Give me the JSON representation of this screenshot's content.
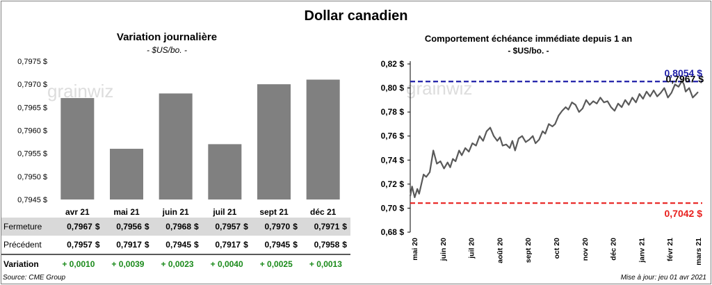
{
  "title": "Dollar canadien",
  "left": {
    "title": "Variation  journalière",
    "subtitle": "- $US/bo. -"
  },
  "right": {
    "title": "Comportement échéance immédiate depuis 1 an",
    "subtitle": "- $US/bo. -"
  },
  "watermark": "grainwiz",
  "chart_data": [
    {
      "type": "bar",
      "categories": [
        "avr 21",
        "mai 21",
        "juin 21",
        "juil 21",
        "sept 21",
        "déc 21"
      ],
      "values": [
        0.7967,
        0.7956,
        0.7968,
        0.7957,
        0.797,
        0.7971
      ],
      "ylim": [
        0.7945,
        0.7975
      ],
      "yticks": [
        "0,7945 $",
        "0,7950 $",
        "0,7955 $",
        "0,7960 $",
        "0,7965 $",
        "0,7970 $",
        "0,7975 $"
      ],
      "bar_color": "#808080",
      "grid": false
    },
    {
      "type": "line",
      "ylim": [
        0.68,
        0.82
      ],
      "yticks": [
        "0,68 $",
        "0,70 $",
        "0,72 $",
        "0,74 $",
        "0,76 $",
        "0,78 $",
        "0,80 $",
        "0,82 $"
      ],
      "xticks": [
        "mai 20",
        "juin 20",
        "juil 20",
        "août 20",
        "sept 20",
        "oct 20",
        "nov 20",
        "déc 20",
        "janv 21",
        "févr 21",
        "mars 21"
      ],
      "x": [
        0,
        2,
        5,
        8,
        10,
        15,
        18,
        22,
        26,
        30,
        34,
        38,
        42,
        45,
        48,
        51,
        55,
        58,
        62,
        66,
        70,
        74,
        78,
        82,
        86,
        90,
        94,
        98,
        101,
        104,
        108,
        112,
        115,
        118,
        122,
        126,
        130,
        134,
        138,
        141,
        145,
        149,
        152,
        156,
        160,
        163,
        167,
        171,
        175,
        178,
        182,
        186,
        190,
        194,
        198,
        202,
        206,
        210,
        214,
        218,
        222,
        226,
        230,
        234,
        238,
        242,
        246,
        250,
        254,
        258,
        262,
        266,
        270,
        274,
        278,
        282,
        286,
        290,
        294,
        298,
        302,
        306,
        308,
        310,
        314,
        318,
        322,
        324
      ],
      "values": [
        0.71,
        0.718,
        0.709,
        0.716,
        0.712,
        0.728,
        0.726,
        0.73,
        0.748,
        0.737,
        0.739,
        0.733,
        0.738,
        0.734,
        0.741,
        0.739,
        0.748,
        0.744,
        0.75,
        0.747,
        0.754,
        0.752,
        0.76,
        0.756,
        0.764,
        0.767,
        0.76,
        0.756,
        0.759,
        0.752,
        0.753,
        0.75,
        0.756,
        0.748,
        0.758,
        0.76,
        0.755,
        0.757,
        0.76,
        0.754,
        0.757,
        0.764,
        0.762,
        0.77,
        0.768,
        0.77,
        0.777,
        0.781,
        0.784,
        0.782,
        0.788,
        0.786,
        0.78,
        0.783,
        0.79,
        0.786,
        0.789,
        0.787,
        0.792,
        0.788,
        0.789,
        0.784,
        0.781,
        0.787,
        0.784,
        0.79,
        0.786,
        0.792,
        0.788,
        0.795,
        0.791,
        0.797,
        0.793,
        0.798,
        0.793,
        0.796,
        0.8,
        0.792,
        0.796,
        0.803,
        0.801,
        0.806,
        0.803,
        0.797,
        0.8,
        0.792,
        0.795,
        0.7967
      ],
      "x_max": 324,
      "series_color": "#595959",
      "reference_lines": [
        {
          "value": 0.8054,
          "label": "0,8054 $",
          "color": "#1f1fa8"
        },
        {
          "value": 0.7042,
          "label": "0,7042 $",
          "color": "#e8201e"
        }
      ],
      "last_label": "0,7967 $",
      "grid": false
    }
  ],
  "table": {
    "rows": [
      {
        "label": "Fermeture",
        "values": [
          "0,7967",
          "0,7956",
          "0,7968",
          "0,7957",
          "0,7970",
          "0,7971"
        ],
        "currency": "$"
      },
      {
        "label": "Précédent",
        "values": [
          "0,7957",
          "0,7917",
          "0,7945",
          "0,7917",
          "0,7945",
          "0,7958"
        ],
        "currency": "$"
      },
      {
        "label": "Variation",
        "values": [
          "+ 0,0010",
          "+ 0,0039",
          "+ 0,0023",
          "+ 0,0040",
          "+ 0,0025",
          "+ 0,0013"
        ]
      }
    ]
  },
  "footer": {
    "source": "Source: CME Group",
    "updated": "Mise à jour: jeu 01 avr 2021"
  }
}
